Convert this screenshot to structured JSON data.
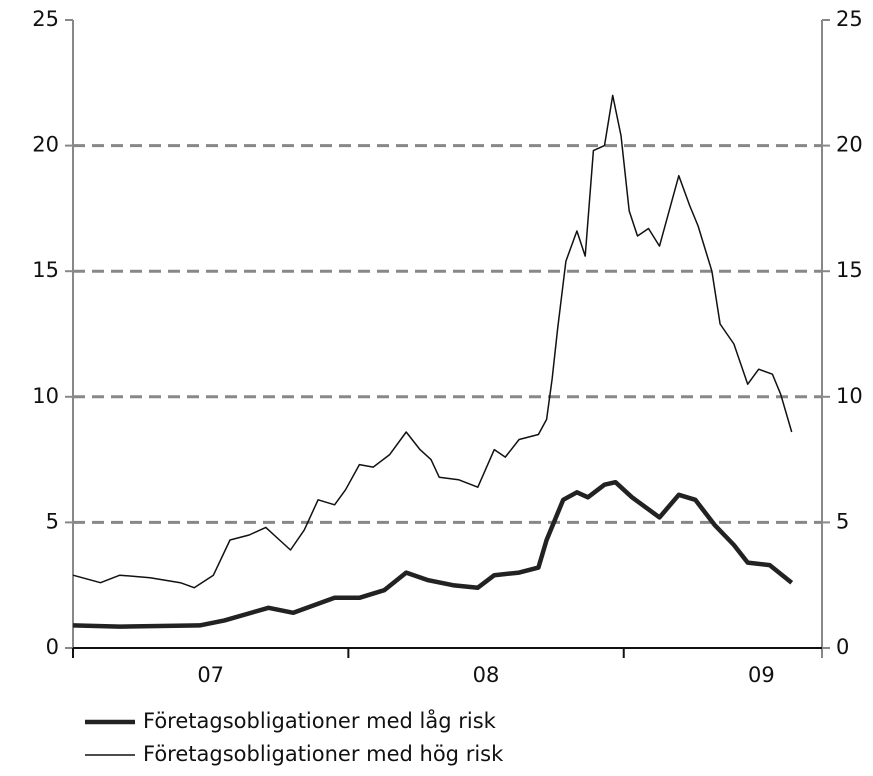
{
  "chart_data": {
    "type": "line",
    "xlim": [
      2007.0,
      2009.72
    ],
    "xticks": [
      {
        "value": 2007.5,
        "label": "07"
      },
      {
        "value": 2008.5,
        "label": "08"
      },
      {
        "value": 2009.5,
        "label": "09"
      }
    ],
    "xtick_marks": [
      2007,
      2008,
      2009
    ],
    "ylim": [
      0,
      25
    ],
    "yticks": [
      0,
      5,
      10,
      15,
      20,
      25
    ],
    "y2lim": [
      0,
      25
    ],
    "y2ticks": [
      0,
      5,
      10,
      15,
      20,
      25
    ],
    "grid": true,
    "series": [
      {
        "name": "Företagsobligationer med låg risk",
        "color": "#222222",
        "width": 4.5,
        "x": [
          2007.0,
          2007.17,
          2007.46,
          2007.55,
          2007.71,
          2007.8,
          2007.95,
          2008.04,
          2008.13,
          2008.21,
          2008.29,
          2008.38,
          2008.47,
          2008.53,
          2008.62,
          2008.69,
          2008.72,
          2008.78,
          2008.83,
          2008.87,
          2008.93,
          2008.97,
          2009.03,
          2009.13,
          2009.2,
          2009.26,
          2009.33,
          2009.4,
          2009.45,
          2009.53,
          2009.61
        ],
        "values": [
          0.9,
          0.85,
          0.9,
          1.1,
          1.6,
          1.4,
          2.0,
          2.0,
          2.3,
          3.0,
          2.7,
          2.5,
          2.4,
          2.9,
          3.0,
          3.2,
          4.3,
          5.9,
          6.2,
          6.0,
          6.5,
          6.6,
          6.0,
          5.2,
          6.1,
          5.9,
          4.9,
          4.1,
          3.4,
          3.3,
          2.6
        ]
      },
      {
        "name": "Företagsobligationer med hög risk",
        "color": "#111111",
        "width": 1.5,
        "x": [
          2007.0,
          2007.1,
          2007.17,
          2007.28,
          2007.39,
          2007.44,
          2007.51,
          2007.57,
          2007.64,
          2007.7,
          2007.75,
          2007.79,
          2007.84,
          2007.89,
          2007.95,
          2007.99,
          2008.04,
          2008.09,
          2008.15,
          2008.21,
          2008.26,
          2008.3,
          2008.33,
          2008.4,
          2008.47,
          2008.53,
          2008.57,
          2008.62,
          2008.69,
          2008.72,
          2008.74,
          2008.76,
          2008.79,
          2008.83,
          2008.86,
          2008.89,
          2008.93,
          2008.96,
          2008.99,
          2009.02,
          2009.05,
          2009.09,
          2009.13,
          2009.17,
          2009.2,
          2009.24,
          2009.27,
          2009.32,
          2009.35,
          2009.4,
          2009.45,
          2009.49,
          2009.54,
          2009.57,
          2009.61
        ],
        "values": [
          2.9,
          2.6,
          2.9,
          2.8,
          2.6,
          2.4,
          2.9,
          4.3,
          4.5,
          4.8,
          4.3,
          3.9,
          4.7,
          5.9,
          5.7,
          6.3,
          7.3,
          7.2,
          7.7,
          8.6,
          7.9,
          7.5,
          6.8,
          6.7,
          6.4,
          7.9,
          7.6,
          8.3,
          8.5,
          9.1,
          10.7,
          12.7,
          15.4,
          16.6,
          15.6,
          19.8,
          20.0,
          22.0,
          20.4,
          17.4,
          16.4,
          16.7,
          16.0,
          17.6,
          18.8,
          17.6,
          16.8,
          15.0,
          12.9,
          12.1,
          10.5,
          11.1,
          10.9,
          10.1,
          8.6
        ]
      }
    ]
  }
}
